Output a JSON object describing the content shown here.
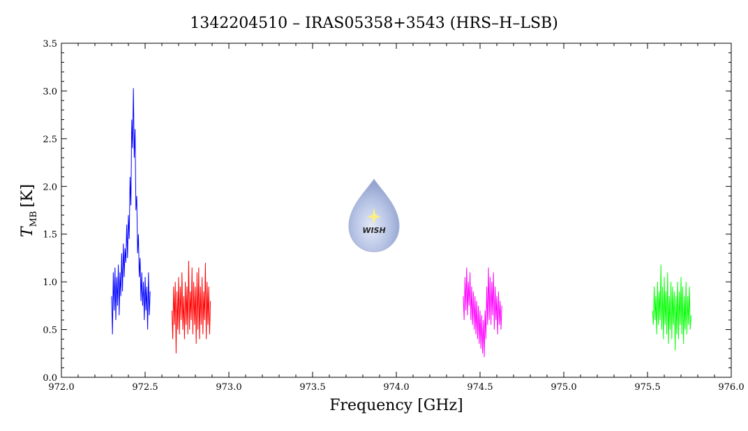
{
  "chart_data": {
    "type": "line",
    "title": "1342204510 – IRAS05358+3543 (HRS–H–LSB)",
    "x_label": "Frequency [GHz]",
    "y_label": {
      "symbol": "T",
      "subscript": "MB",
      "unit": "[K]"
    },
    "logo_text": "WISH",
    "xlim": [
      972.0,
      976.0
    ],
    "ylim": [
      0.0,
      3.5
    ],
    "xticks": [
      {
        "value": 972.0,
        "label": "972.0"
      },
      {
        "value": 972.5,
        "label": "972.5"
      },
      {
        "value": 973.0,
        "label": "973.0"
      },
      {
        "value": 973.5,
        "label": "973.5"
      },
      {
        "value": 974.0,
        "label": "974.0"
      },
      {
        "value": 974.5,
        "label": "974.5"
      },
      {
        "value": 975.0,
        "label": "975.0"
      },
      {
        "value": 975.5,
        "label": "975.5"
      },
      {
        "value": 976.0,
        "label": "976.0"
      }
    ],
    "yticks": [
      {
        "value": 0.0,
        "label": "0.0"
      },
      {
        "value": 0.5,
        "label": "0.5"
      },
      {
        "value": 1.0,
        "label": "1.0"
      },
      {
        "value": 1.5,
        "label": "1.5"
      },
      {
        "value": 2.0,
        "label": "2.0"
      },
      {
        "value": 2.5,
        "label": "2.5"
      },
      {
        "value": 3.0,
        "label": "3.0"
      },
      {
        "value": 3.5,
        "label": "3.5"
      }
    ],
    "series": [
      {
        "color": "#0000ff",
        "x": [
          972.3,
          972.305,
          972.31,
          972.315,
          972.32,
          972.325,
          972.33,
          972.335,
          972.34,
          972.345,
          972.35,
          972.355,
          972.36,
          972.365,
          972.37,
          972.375,
          972.38,
          972.385,
          972.39,
          972.395,
          972.4,
          972.405,
          972.41,
          972.415,
          972.42,
          972.425,
          972.43,
          972.435,
          972.44,
          972.445,
          972.45,
          972.455,
          972.46,
          972.465,
          972.47,
          972.475,
          972.48,
          972.485,
          972.49,
          972.495,
          972.5,
          972.505,
          972.51,
          972.515,
          972.52,
          972.525,
          972.53
        ],
        "values": [
          0.85,
          0.45,
          1.1,
          0.7,
          1.15,
          0.6,
          1.05,
          0.75,
          1.18,
          0.65,
          1.1,
          0.85,
          1.3,
          0.9,
          1.4,
          1.05,
          1.35,
          1.2,
          1.6,
          1.25,
          1.7,
          1.45,
          2.1,
          1.8,
          2.7,
          2.4,
          3.03,
          2.3,
          2.6,
          1.75,
          1.9,
          1.3,
          1.5,
          1.05,
          1.25,
          0.8,
          1.1,
          0.75,
          1.0,
          0.6,
          1.05,
          0.7,
          0.95,
          0.5,
          1.1,
          0.65,
          0.9
        ]
      },
      {
        "color": "#ff0000",
        "x": [
          972.66,
          972.665,
          972.67,
          972.675,
          972.68,
          972.685,
          972.69,
          972.695,
          972.7,
          972.705,
          972.71,
          972.715,
          972.72,
          972.725,
          972.73,
          972.735,
          972.74,
          972.745,
          972.75,
          972.755,
          972.76,
          972.765,
          972.77,
          972.775,
          972.78,
          972.785,
          972.79,
          972.795,
          972.8,
          972.805,
          972.81,
          972.815,
          972.82,
          972.825,
          972.83,
          972.835,
          972.84,
          972.845,
          972.85,
          972.855,
          972.86,
          972.865,
          972.87,
          972.875,
          972.88,
          972.885,
          972.89
        ],
        "values": [
          0.7,
          0.4,
          0.95,
          0.55,
          1.0,
          0.25,
          0.9,
          0.5,
          1.05,
          0.45,
          0.95,
          0.6,
          1.1,
          0.5,
          0.85,
          0.4,
          1.0,
          0.55,
          0.95,
          0.45,
          1.22,
          0.5,
          0.9,
          0.6,
          1.15,
          0.45,
          1.0,
          0.55,
          0.95,
          0.35,
          1.1,
          0.5,
          1.15,
          0.4,
          0.95,
          0.55,
          1.05,
          0.45,
          0.9,
          0.6,
          1.2,
          0.4,
          1.0,
          0.55,
          0.95,
          0.45,
          0.8
        ]
      },
      {
        "color": "#ff00ff",
        "x": [
          974.4,
          974.405,
          974.41,
          974.415,
          974.42,
          974.425,
          974.43,
          974.435,
          974.44,
          974.445,
          974.45,
          974.455,
          974.46,
          974.465,
          974.47,
          974.475,
          974.48,
          974.485,
          974.49,
          974.495,
          974.5,
          974.505,
          974.51,
          974.515,
          974.52,
          974.525,
          974.53,
          974.535,
          974.54,
          974.545,
          974.55,
          974.555,
          974.56,
          974.565,
          974.57,
          974.575,
          974.58,
          974.585,
          974.59,
          974.595,
          974.6,
          974.605,
          974.61,
          974.615,
          974.62,
          974.625,
          974.63
        ],
        "values": [
          0.85,
          0.6,
          1.05,
          0.7,
          1.15,
          0.65,
          1.0,
          0.75,
          1.1,
          0.6,
          0.95,
          0.55,
          0.9,
          0.5,
          0.85,
          0.45,
          0.8,
          0.4,
          0.75,
          0.35,
          0.7,
          0.3,
          0.65,
          0.25,
          0.6,
          0.21,
          0.7,
          0.4,
          0.95,
          0.55,
          1.15,
          0.6,
          1.05,
          0.55,
          1.0,
          0.65,
          1.1,
          0.5,
          0.95,
          0.6,
          0.85,
          0.45,
          0.9,
          0.55,
          0.8,
          0.5,
          0.75
        ]
      },
      {
        "color": "#00ff00",
        "x": [
          975.53,
          975.535,
          975.54,
          975.545,
          975.55,
          975.555,
          975.56,
          975.565,
          975.57,
          975.575,
          975.58,
          975.585,
          975.59,
          975.595,
          975.6,
          975.605,
          975.61,
          975.615,
          975.62,
          975.625,
          975.63,
          975.635,
          975.64,
          975.645,
          975.65,
          975.655,
          975.66,
          975.665,
          975.67,
          975.675,
          975.68,
          975.685,
          975.69,
          975.695,
          975.7,
          975.705,
          975.71,
          975.715,
          975.72,
          975.725,
          975.73,
          975.735,
          975.74,
          975.745,
          975.75,
          975.755,
          975.76
        ],
        "values": [
          0.7,
          0.55,
          0.95,
          0.6,
          0.85,
          0.45,
          1.0,
          0.55,
          0.9,
          0.6,
          1.18,
          0.5,
          0.95,
          0.4,
          1.05,
          0.55,
          0.9,
          0.45,
          1.1,
          0.35,
          0.85,
          0.5,
          1.0,
          0.4,
          0.95,
          0.55,
          0.9,
          0.28,
          0.85,
          0.45,
          1.0,
          0.4,
          0.9,
          0.55,
          1.05,
          0.45,
          0.95,
          0.35,
          0.85,
          0.5,
          1.0,
          0.45,
          0.85,
          0.55,
          0.95,
          0.5,
          0.65
        ]
      }
    ]
  }
}
